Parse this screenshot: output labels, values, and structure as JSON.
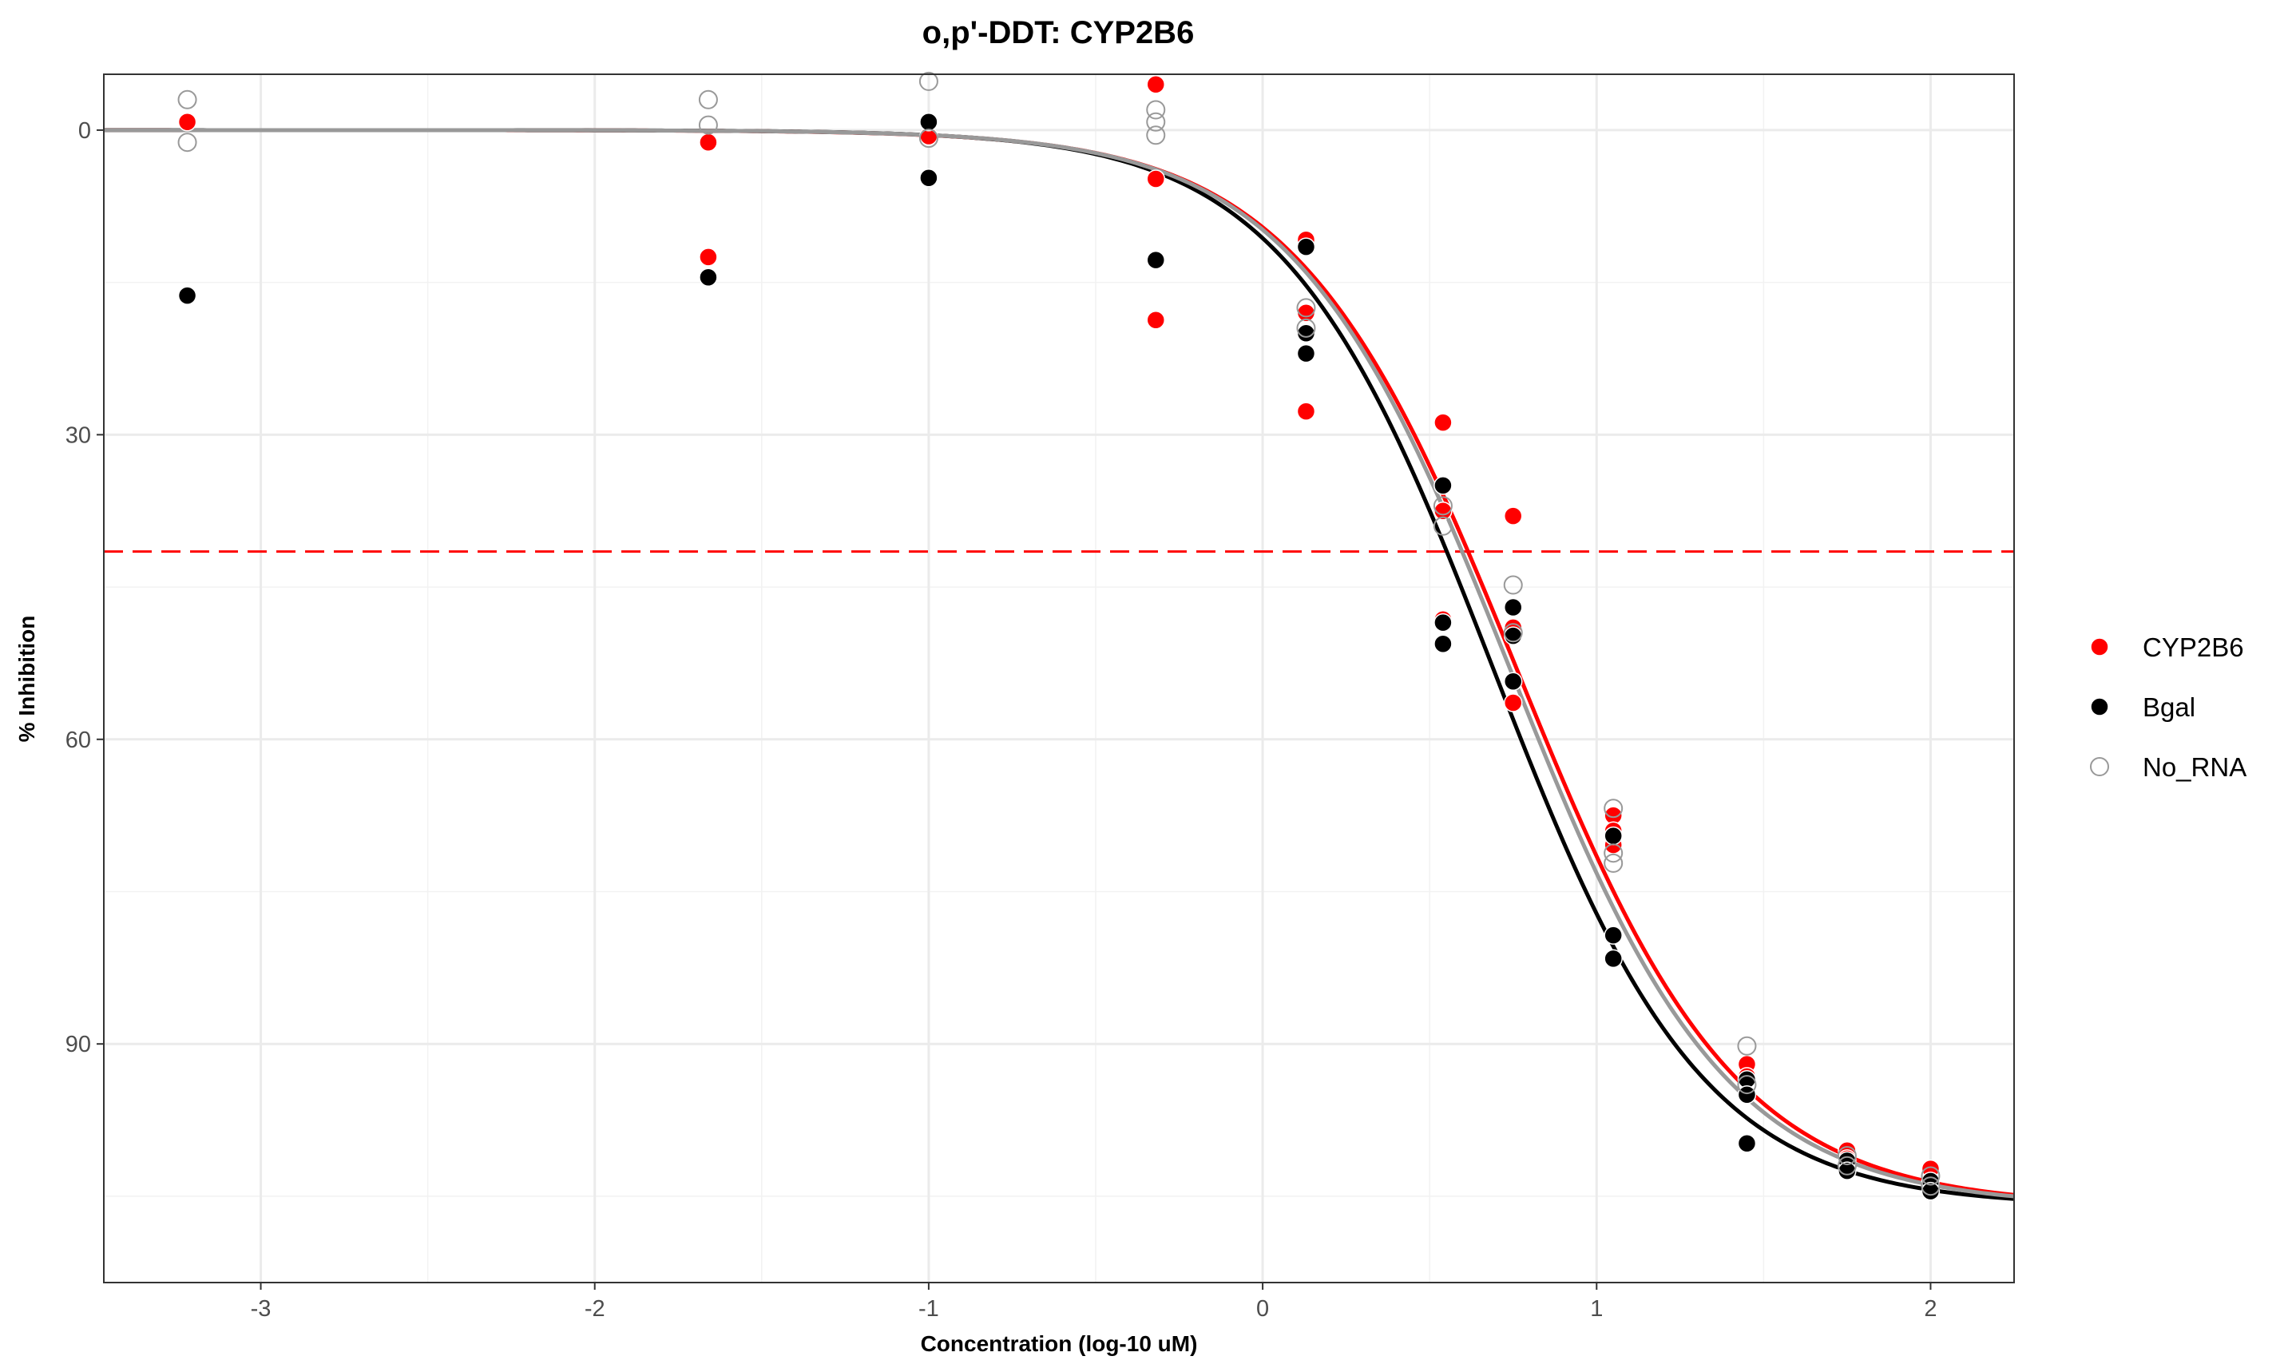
{
  "chart_data": {
    "type": "scatter",
    "title": "o,p'-DDT: CYP2B6",
    "xlabel": "Concentration (log-10 uM)",
    "ylabel": "% Inhibition",
    "xlim": [
      -3.47,
      2.25
    ],
    "ylim": [
      113.5,
      -5.5
    ],
    "y_reversed": true,
    "x_ticks": [
      -3,
      -2,
      -1,
      0,
      1,
      2
    ],
    "x_tick_labels": [
      "-3",
      "-2",
      "-1",
      "0",
      "1",
      "2"
    ],
    "y_ticks": [
      0,
      30,
      60,
      90
    ],
    "y_tick_labels": [
      "0",
      "30",
      "60",
      "90"
    ],
    "grid": true,
    "legend_position": "right",
    "reference_line": {
      "y": 41.5,
      "color": "#ff0000",
      "style": "dashed"
    },
    "series": [
      {
        "name": "CYP2B6",
        "color": "#ff0000",
        "marker": "filled",
        "points": [
          [
            -3.22,
            -0.8
          ],
          [
            -1.66,
            1.2
          ],
          [
            -1.66,
            12.5
          ],
          [
            -1.0,
            0.6
          ],
          [
            -0.32,
            -4.5
          ],
          [
            -0.32,
            4.8
          ],
          [
            -0.32,
            18.7
          ],
          [
            0.13,
            10.8
          ],
          [
            0.13,
            18.0
          ],
          [
            0.13,
            27.7
          ],
          [
            0.54,
            28.8
          ],
          [
            0.54,
            37.5
          ],
          [
            0.54,
            48.2
          ],
          [
            0.75,
            38.0
          ],
          [
            0.75,
            49.0
          ],
          [
            0.75,
            56.4
          ],
          [
            1.05,
            67.5
          ],
          [
            1.05,
            69.0
          ],
          [
            1.05,
            70.4
          ],
          [
            1.45,
            92.0
          ],
          [
            1.45,
            93.2
          ],
          [
            1.75,
            100.5
          ],
          [
            1.75,
            101.3
          ],
          [
            2.0,
            102.3
          ]
        ],
        "fit": {
          "top": 0,
          "bottom": 106,
          "log_ic50": 0.76,
          "hill": 1.32
        }
      },
      {
        "name": "Bgal",
        "color": "#000000",
        "marker": "filled",
        "points": [
          [
            -3.22,
            16.3
          ],
          [
            -1.66,
            14.5
          ],
          [
            -1.0,
            -0.8
          ],
          [
            -1.0,
            4.7
          ],
          [
            -0.32,
            12.8
          ],
          [
            0.13,
            11.5
          ],
          [
            0.13,
            20.0
          ],
          [
            0.13,
            22.0
          ],
          [
            0.54,
            35.0
          ],
          [
            0.54,
            48.5
          ],
          [
            0.54,
            50.6
          ],
          [
            0.75,
            47.0
          ],
          [
            0.75,
            49.8
          ],
          [
            0.75,
            54.3
          ],
          [
            1.05,
            69.5
          ],
          [
            1.05,
            79.3
          ],
          [
            1.05,
            81.6
          ],
          [
            1.45,
            93.5
          ],
          [
            1.45,
            95.0
          ],
          [
            1.45,
            99.8
          ],
          [
            1.75,
            101.5
          ],
          [
            1.75,
            102.5
          ],
          [
            2.0,
            103.5
          ],
          [
            2.0,
            104.5
          ]
        ],
        "fit": {
          "top": 0,
          "bottom": 106,
          "log_ic50": 0.69,
          "hill": 1.38
        }
      },
      {
        "name": "No_RNA",
        "color": "#999999",
        "marker": "hollow",
        "points": [
          [
            -3.22,
            -3.0
          ],
          [
            -3.22,
            1.2
          ],
          [
            -1.66,
            -3.0
          ],
          [
            -1.66,
            -0.5
          ],
          [
            -1.0,
            -4.8
          ],
          [
            -1.0,
            0.8
          ],
          [
            -0.32,
            -2.0
          ],
          [
            -0.32,
            -0.8
          ],
          [
            -0.32,
            0.5
          ],
          [
            0.13,
            17.5
          ],
          [
            0.13,
            19.5
          ],
          [
            0.54,
            37.0
          ],
          [
            0.54,
            39.0
          ],
          [
            0.75,
            44.8
          ],
          [
            0.75,
            49.5
          ],
          [
            1.05,
            66.8
          ],
          [
            1.05,
            71.2
          ],
          [
            1.05,
            72.2
          ],
          [
            1.45,
            90.2
          ],
          [
            1.45,
            94.0
          ],
          [
            1.75,
            101.0
          ],
          [
            1.75,
            102.0
          ],
          [
            2.0,
            103.0
          ],
          [
            2.0,
            104.0
          ]
        ],
        "fit": {
          "top": 0,
          "bottom": 106,
          "log_ic50": 0.74,
          "hill": 1.34
        }
      }
    ]
  }
}
